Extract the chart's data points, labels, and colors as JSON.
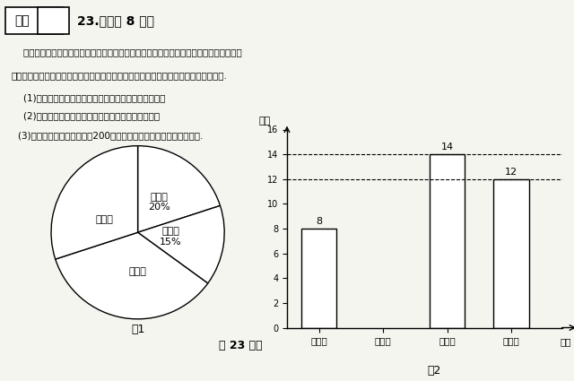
{
  "title_line1": "得分",
  "problem_number": "23.（本题 8 分）",
  "text_line1": "    某中学在开展读书交流活动中，为了解同学们所读书籍的种类，对部分同学进行了抽样调",
  "text_line2": "查，王老师根据调查数据绘制了如图所示不完整的统计图，请根据统计图回答下面问题.",
  "question1": "    (1)本次抽样调查的书籍有多少本？请补全条形统计图；",
  "question2": "    (2)求出图１中表示文学类书籍的扇形圆心角的度数；",
  "question3": "    (3)本次活动同学们共阅读１200本书籍，请估计有多少本科普类书籍.",
  "pie_labels": [
    "艺术类\n20%",
    "其他类\n15%",
    "文学类",
    "科普类"
  ],
  "pie_sizes": [
    20,
    15,
    35,
    30
  ],
  "pie_startangle": 90,
  "bar_categories": [
    "艺术类",
    "其他类",
    "文学类",
    "科普类"
  ],
  "bar_values": [
    8,
    0,
    14,
    12
  ],
  "bar_missing": [
    false,
    true,
    false,
    false
  ],
  "bar_labels": [
    "8",
    "",
    "14",
    "12"
  ],
  "dashed_lines": [
    14,
    12
  ],
  "y_max": 16,
  "y_ticks": [
    0,
    2,
    4,
    6,
    8,
    10,
    12,
    14,
    16
  ],
  "ylabel": "人数",
  "xlabel": "种类",
  "fig1_label": "图1",
  "fig2_label": "图2",
  "caption": "第 23 题图",
  "background_color": "#f5f5f0",
  "text_color": "#000000"
}
